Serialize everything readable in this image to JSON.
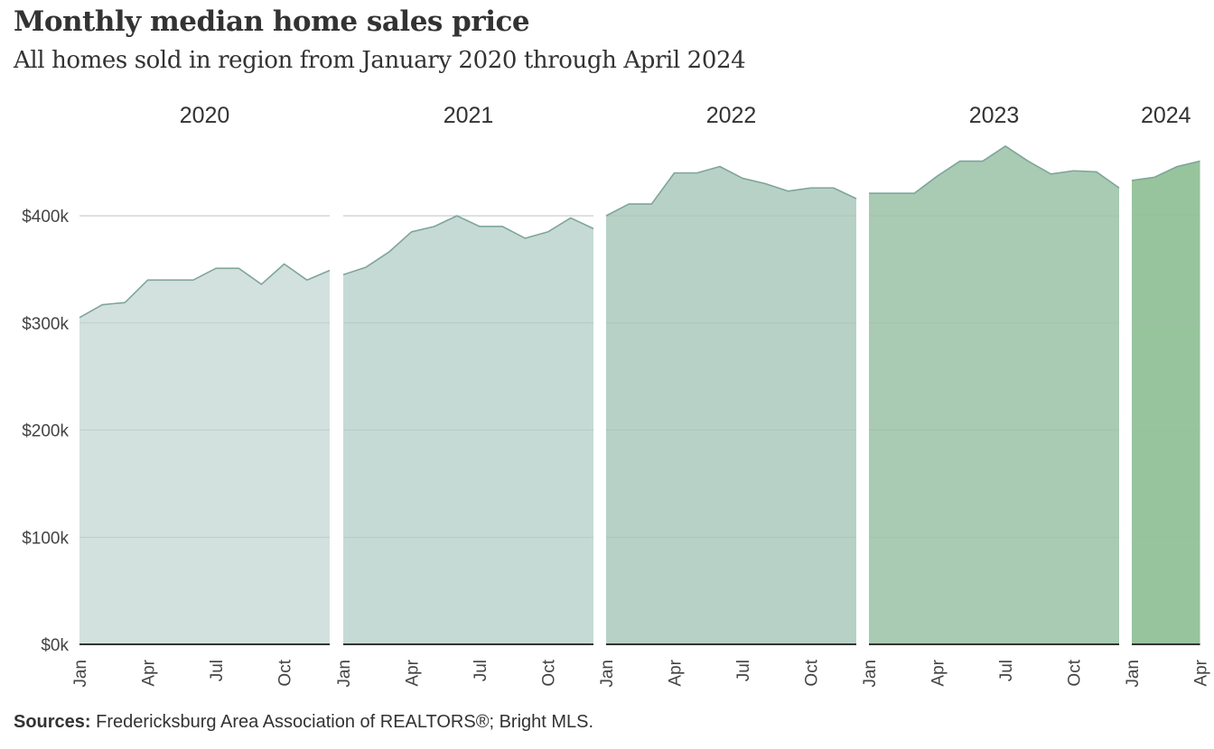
{
  "title": "Monthly median home sales price",
  "subtitle": "All homes sold in region from January 2020 through April 2024",
  "source": {
    "label": "Sources:",
    "text": "Fredericksburg  Area Association of REALTORS®;  Bright MLS."
  },
  "chart_data": {
    "type": "area",
    "title": "Monthly median home sales price",
    "subtitle": "All homes sold in region from January 2020 through April 2024",
    "ylim": [
      0,
      470000
    ],
    "yticks": [
      0,
      100000,
      200000,
      300000,
      400000
    ],
    "ytick_labels": [
      "$0k",
      "$100k",
      "$200k",
      "$300k",
      "$400k"
    ],
    "grid": true,
    "x_tick_months": [
      "Jan",
      "Apr",
      "Jul",
      "Oct"
    ],
    "panels": [
      {
        "year": "2020",
        "color": "#cfdfdb",
        "months": [
          "Jan",
          "Feb",
          "Mar",
          "Apr",
          "May",
          "Jun",
          "Jul",
          "Aug",
          "Sep",
          "Oct",
          "Nov",
          "Dec"
        ],
        "values": [
          305000,
          317000,
          319000,
          340000,
          340000,
          340000,
          351000,
          351000,
          336000,
          355000,
          340000,
          349000
        ]
      },
      {
        "year": "2021",
        "color": "#c2d7d2",
        "months": [
          "Jan",
          "Feb",
          "Mar",
          "Apr",
          "May",
          "Jun",
          "Jul",
          "Aug",
          "Sep",
          "Oct",
          "Nov",
          "Dec"
        ],
        "values": [
          345000,
          352000,
          366000,
          385000,
          390000,
          400000,
          390000,
          390000,
          379000,
          385000,
          398000,
          388000
        ]
      },
      {
        "year": "2022",
        "color": "#b2cec2",
        "months": [
          "Jan",
          "Feb",
          "Mar",
          "Apr",
          "May",
          "Jun",
          "Jul",
          "Aug",
          "Sep",
          "Oct",
          "Nov",
          "Dec"
        ],
        "values": [
          400000,
          411000,
          411000,
          440000,
          440000,
          446000,
          435000,
          430000,
          423000,
          426000,
          426000,
          416000
        ]
      },
      {
        "year": "2023",
        "color": "#a2c6ad",
        "months": [
          "Jan",
          "Feb",
          "Mar",
          "Apr",
          "May",
          "Jun",
          "Jul",
          "Aug",
          "Sep",
          "Oct",
          "Nov",
          "Dec"
        ],
        "values": [
          421000,
          421000,
          421000,
          437000,
          451000,
          451000,
          465000,
          451000,
          439000,
          442000,
          441000,
          426000
        ]
      },
      {
        "year": "2024",
        "color": "#8fbf95",
        "months": [
          "Jan",
          "Feb",
          "Mar",
          "Apr"
        ],
        "values": [
          433000,
          436000,
          446000,
          451000
        ]
      }
    ]
  }
}
